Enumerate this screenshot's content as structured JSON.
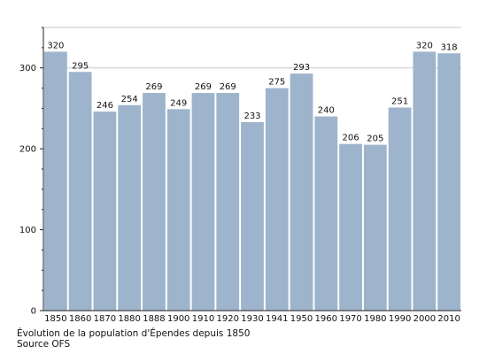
{
  "chart_data": {
    "type": "bar",
    "title": "",
    "xlabel": "",
    "ylabel": "",
    "categories": [
      "1850",
      "1860",
      "1870",
      "1880",
      "1888",
      "1900",
      "1910",
      "1920",
      "1930",
      "1941",
      "1950",
      "1960",
      "1970",
      "1980",
      "1990",
      "2000",
      "2010"
    ],
    "series": [
      {
        "values": [
          320,
          295,
          246,
          254,
          269,
          249,
          269,
          269,
          233,
          275,
          293,
          240,
          206,
          205,
          251,
          320,
          318
        ]
      }
    ],
    "ylim": [
      0,
      350
    ],
    "yticks": [
      0,
      100,
      200,
      300
    ],
    "grid": {
      "horizontal": true,
      "values": [
        300
      ]
    },
    "bar_color": "#9db4cc",
    "grid_color": "#c8c8c8",
    "axis_color": "#222222",
    "captions": [
      "Évolution de la population d'Épendes depuis 1850",
      "Source OFS"
    ]
  }
}
